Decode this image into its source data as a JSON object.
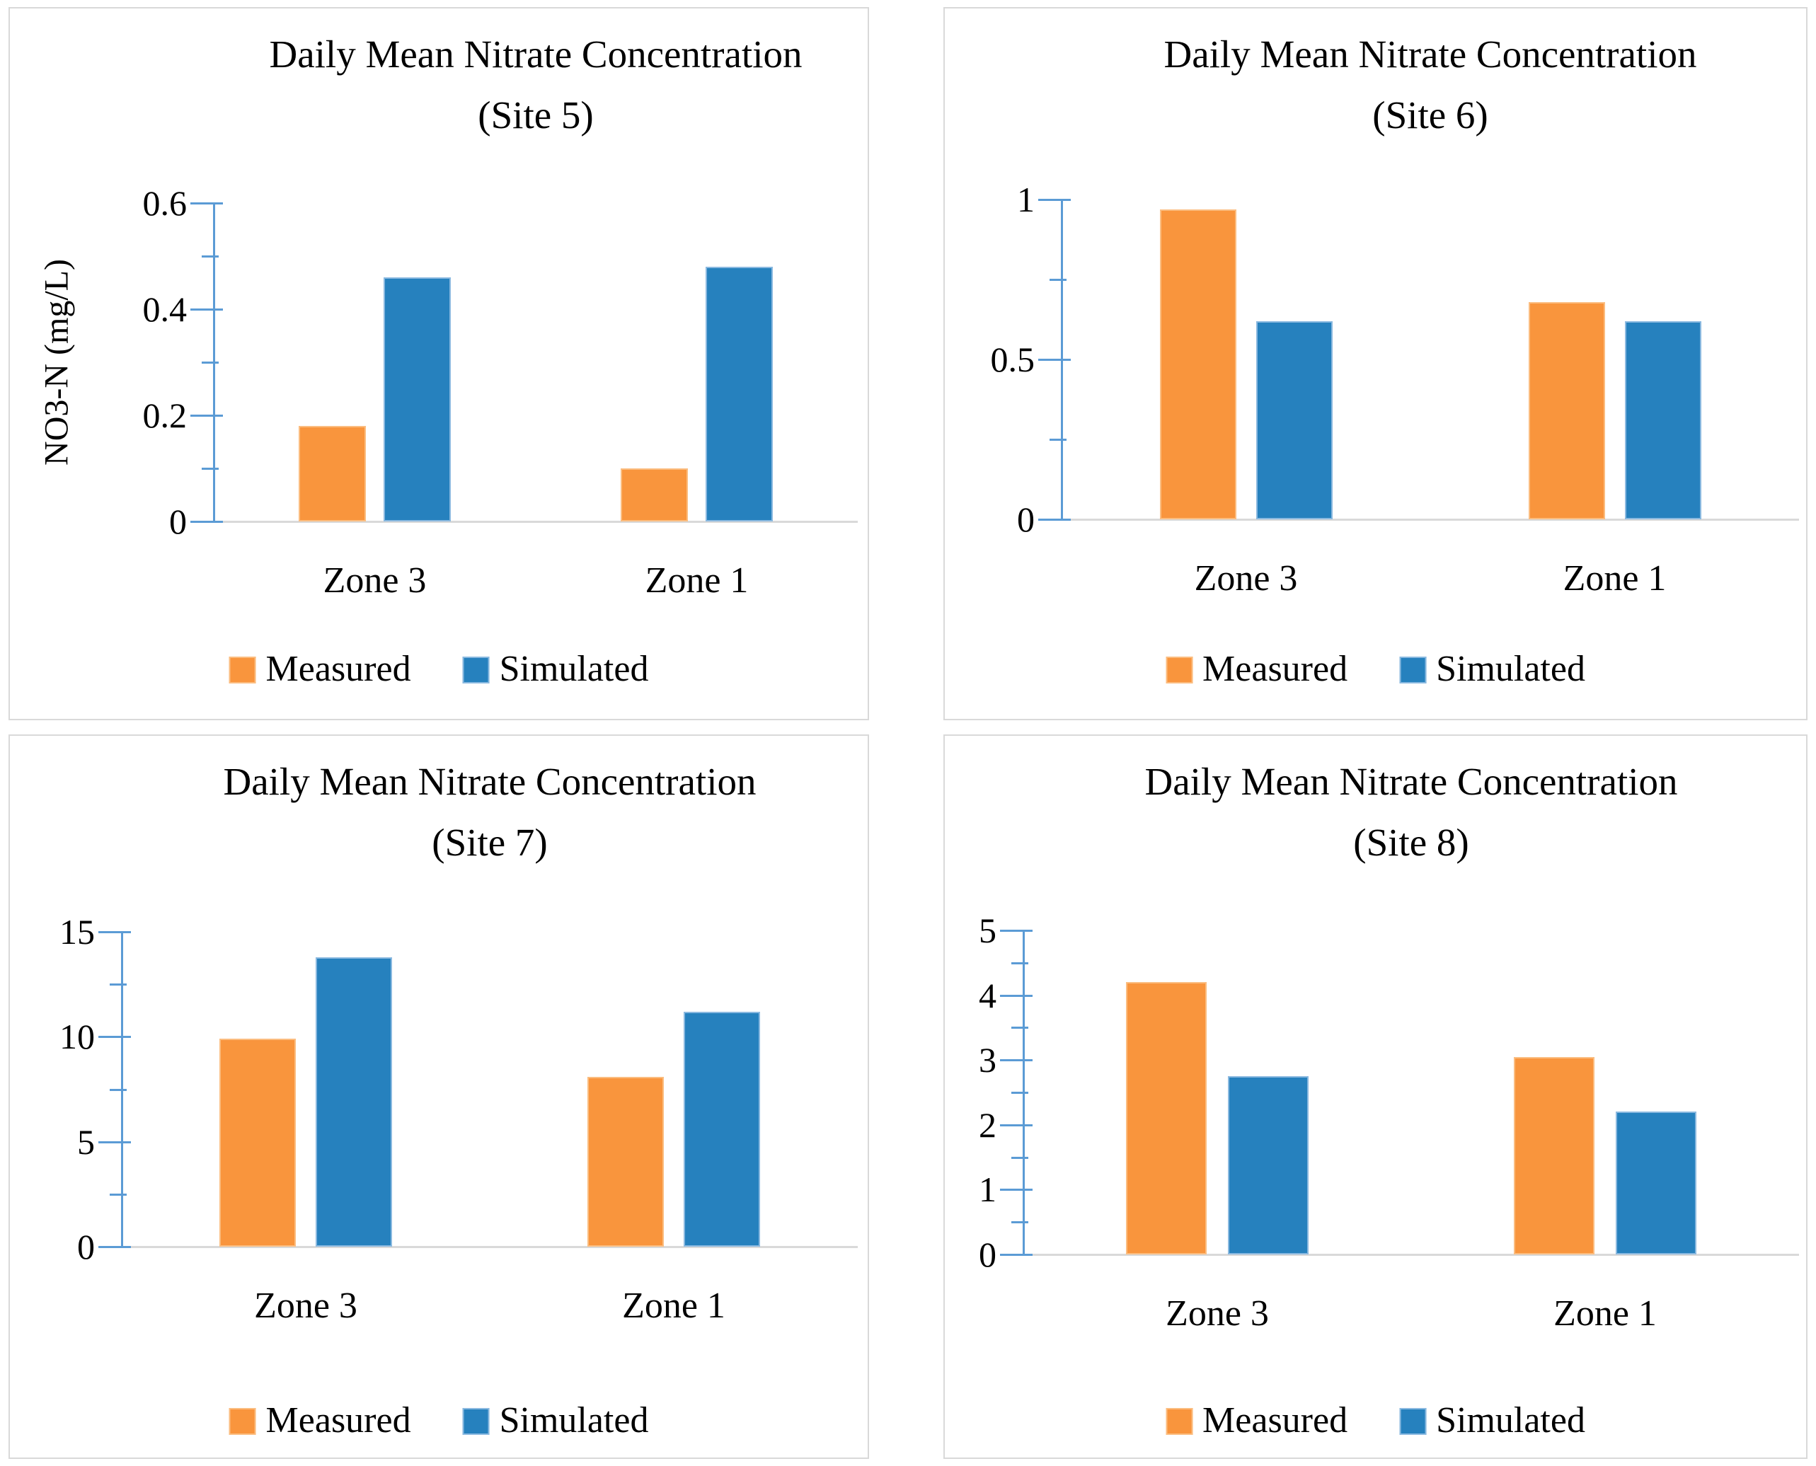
{
  "figure": {
    "background": "#FFFFFF",
    "layout": "2x2 grid of bar charts"
  },
  "colors": {
    "measured_fill": "#F9953D",
    "simulated_fill": "#2681BE",
    "axis_line": "#5B9BD5",
    "baseline": "#D9D9D9",
    "panel_border": "#D9D9D9",
    "text": "#000000"
  },
  "chart_data": [
    {
      "type": "bar",
      "title": "Daily Mean Nitrate Concentration",
      "subtitle": "(Site 5)",
      "ylabel": "NO3-N (mg/L)",
      "xlabel": "",
      "categories": [
        "Zone 3",
        "Zone 1"
      ],
      "series": [
        {
          "name": "Measured",
          "color": "#F9953D",
          "values": [
            0.18,
            0.1
          ]
        },
        {
          "name": "Simulated",
          "color": "#2681BE",
          "values": [
            0.46,
            0.48
          ]
        }
      ],
      "ylim": [
        0,
        0.6
      ],
      "ytick_values": [
        0.6,
        0.4,
        0.2,
        0
      ],
      "ytick_labels": [
        "0.6",
        "0.4",
        "0.2",
        "0"
      ],
      "minor_tick_values": [
        0.5,
        0.3,
        0.1
      ],
      "grid": false,
      "legend_position": "bottom"
    },
    {
      "type": "bar",
      "title": "Daily Mean Nitrate Concentration",
      "subtitle": "(Site 6)",
      "ylabel": "",
      "xlabel": "",
      "categories": [
        "Zone 3",
        "Zone 1"
      ],
      "series": [
        {
          "name": "Measured",
          "color": "#F9953D",
          "values": [
            0.97,
            0.68
          ]
        },
        {
          "name": "Simulated",
          "color": "#2681BE",
          "values": [
            0.62,
            0.62
          ]
        }
      ],
      "ylim": [
        0,
        1
      ],
      "ytick_values": [
        1,
        0.5,
        0
      ],
      "ytick_labels": [
        "1",
        "0.5",
        "0"
      ],
      "minor_tick_values": [
        0.75,
        0.25
      ],
      "grid": false,
      "legend_position": "bottom"
    },
    {
      "type": "bar",
      "title": "Daily Mean Nitrate Concentration",
      "subtitle": "(Site 7)",
      "ylabel": "",
      "xlabel": "",
      "categories": [
        "Zone 3",
        "Zone 1"
      ],
      "series": [
        {
          "name": "Measured",
          "color": "#F9953D",
          "values": [
            9.9,
            8.1
          ]
        },
        {
          "name": "Simulated",
          "color": "#2681BE",
          "values": [
            13.8,
            11.2
          ]
        }
      ],
      "ylim": [
        0,
        15
      ],
      "ytick_values": [
        15,
        10,
        5,
        0
      ],
      "ytick_labels": [
        "15",
        "10",
        "5",
        "0"
      ],
      "minor_tick_values": [
        12.5,
        7.5,
        2.5
      ],
      "grid": false,
      "legend_position": "bottom"
    },
    {
      "type": "bar",
      "title": "Daily Mean Nitrate Concentration",
      "subtitle": "(Site 8)",
      "ylabel": "",
      "xlabel": "",
      "categories": [
        "Zone 3",
        "Zone 1"
      ],
      "series": [
        {
          "name": "Measured",
          "color": "#F9953D",
          "values": [
            4.2,
            3.05
          ]
        },
        {
          "name": "Simulated",
          "color": "#2681BE",
          "values": [
            2.75,
            2.2
          ]
        }
      ],
      "ylim": [
        0,
        5
      ],
      "ytick_values": [
        5,
        4,
        3,
        2,
        1,
        0
      ],
      "ytick_labels": [
        "5",
        "4",
        "3",
        "2",
        "1",
        "0"
      ],
      "minor_tick_values": [
        4.5,
        3.5,
        2.5,
        1.5,
        0.5
      ],
      "grid": false,
      "legend_position": "bottom"
    }
  ]
}
